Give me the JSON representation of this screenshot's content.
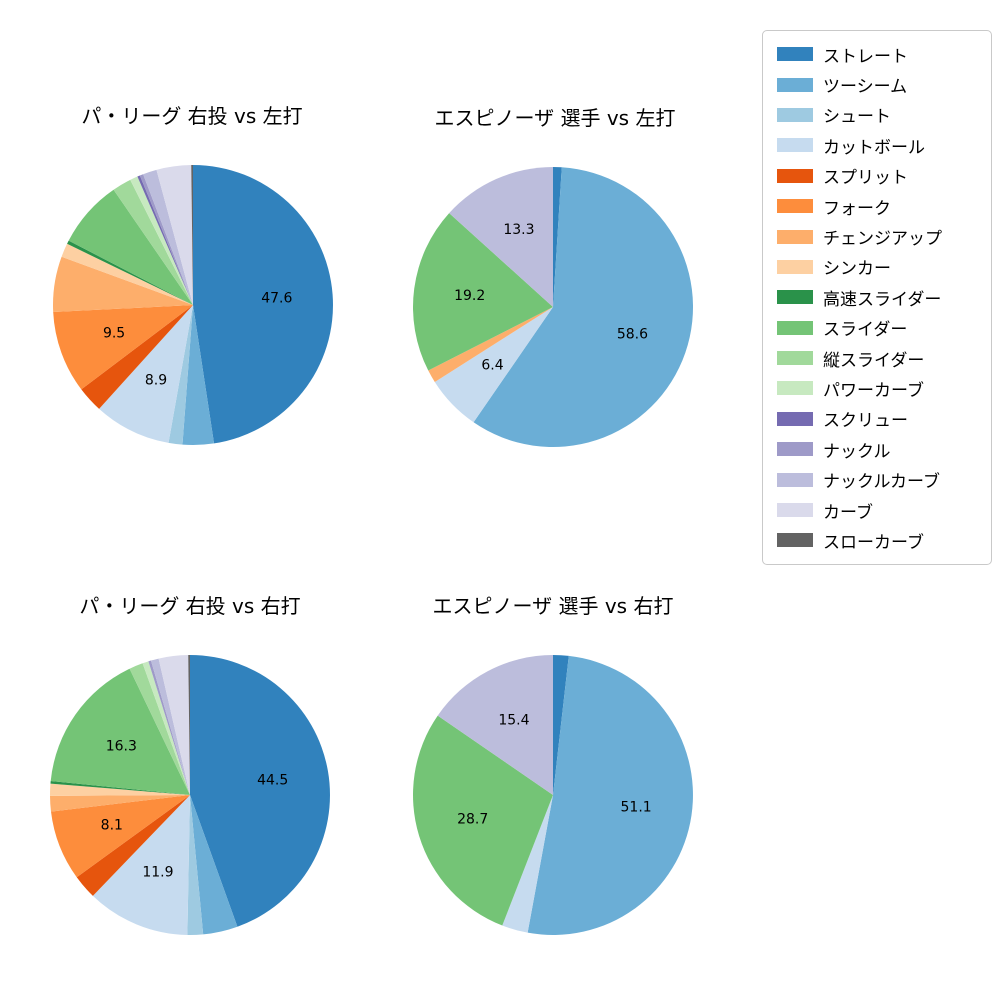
{
  "legend": {
    "items": [
      {
        "label": "ストレート",
        "color": "#3182bd"
      },
      {
        "label": "ツーシーム",
        "color": "#6baed6"
      },
      {
        "label": "シュート",
        "color": "#9ecae1"
      },
      {
        "label": "カットボール",
        "color": "#c6dbef"
      },
      {
        "label": "スプリット",
        "color": "#e6550d"
      },
      {
        "label": "フォーク",
        "color": "#fd8d3c"
      },
      {
        "label": "チェンジアップ",
        "color": "#fdae6b"
      },
      {
        "label": "シンカー",
        "color": "#fdd0a2"
      },
      {
        "label": "高速スライダー",
        "color": "#2a924a"
      },
      {
        "label": "スライダー",
        "color": "#74c476"
      },
      {
        "label": "縦スライダー",
        "color": "#a1d99b"
      },
      {
        "label": "パワーカーブ",
        "color": "#c7e9c0"
      },
      {
        "label": "スクリュー",
        "color": "#756bb1"
      },
      {
        "label": "ナックル",
        "color": "#9e9ac8"
      },
      {
        "label": "ナックルカーブ",
        "color": "#bcbddc"
      },
      {
        "label": "カーブ",
        "color": "#dadaeb"
      },
      {
        "label": "スローカーブ",
        "color": "#636363"
      }
    ]
  },
  "chart_data": [
    {
      "type": "pie",
      "title": "パ・リーグ 右投 vs 左打",
      "start_angle_deg": 90,
      "direction": "clockwise",
      "slices": [
        {
          "name": "ストレート",
          "value": 47.6,
          "pct_label": "47.6"
        },
        {
          "name": "ツーシーム",
          "value": 3.6
        },
        {
          "name": "シュート",
          "value": 1.6
        },
        {
          "name": "カットボール",
          "value": 8.9,
          "pct_label": "8.9"
        },
        {
          "name": "スプリット",
          "value": 3.0
        },
        {
          "name": "フォーク",
          "value": 9.5,
          "pct_label": "9.5"
        },
        {
          "name": "チェンジアップ",
          "value": 6.4
        },
        {
          "name": "シンカー",
          "value": 1.6
        },
        {
          "name": "高速スライダー",
          "value": 0.4
        },
        {
          "name": "スライダー",
          "value": 7.8
        },
        {
          "name": "縦スライダー",
          "value": 2.2
        },
        {
          "name": "パワーカーブ",
          "value": 0.9
        },
        {
          "name": "スクリュー",
          "value": 0.3
        },
        {
          "name": "ナックル",
          "value": 0.4
        },
        {
          "name": "ナックルカーブ",
          "value": 1.6
        },
        {
          "name": "カーブ",
          "value": 4.0
        },
        {
          "name": "スローカーブ",
          "value": 0.2
        }
      ]
    },
    {
      "type": "pie",
      "title": "エスピノーザ 選手 vs 左打",
      "start_angle_deg": 90,
      "direction": "clockwise",
      "slices": [
        {
          "name": "ストレート",
          "value": 1.0
        },
        {
          "name": "ツーシーム",
          "value": 58.6,
          "pct_label": "58.6"
        },
        {
          "name": "カットボール",
          "value": 6.4,
          "pct_label": "6.4"
        },
        {
          "name": "チェンジアップ",
          "value": 1.5
        },
        {
          "name": "スライダー",
          "value": 19.2,
          "pct_label": "19.2"
        },
        {
          "name": "ナックルカーブ",
          "value": 13.3,
          "pct_label": "13.3"
        }
      ]
    },
    {
      "type": "pie",
      "title": "パ・リーグ 右投 vs 右打",
      "start_angle_deg": 90,
      "direction": "clockwise",
      "slices": [
        {
          "name": "ストレート",
          "value": 44.5,
          "pct_label": "44.5"
        },
        {
          "name": "ツーシーム",
          "value": 4.0
        },
        {
          "name": "シュート",
          "value": 1.8
        },
        {
          "name": "カットボール",
          "value": 11.9,
          "pct_label": "11.9"
        },
        {
          "name": "スプリット",
          "value": 2.8
        },
        {
          "name": "フォーク",
          "value": 8.1,
          "pct_label": "8.1"
        },
        {
          "name": "チェンジアップ",
          "value": 1.8
        },
        {
          "name": "シンカー",
          "value": 1.4
        },
        {
          "name": "高速スライダー",
          "value": 0.3
        },
        {
          "name": "スライダー",
          "value": 16.3,
          "pct_label": "16.3"
        },
        {
          "name": "縦スライダー",
          "value": 1.6
        },
        {
          "name": "パワーカーブ",
          "value": 0.7
        },
        {
          "name": "ナックル",
          "value": 0.3
        },
        {
          "name": "ナックルカーブ",
          "value": 0.9
        },
        {
          "name": "カーブ",
          "value": 3.4
        },
        {
          "name": "スローカーブ",
          "value": 0.2
        }
      ]
    },
    {
      "type": "pie",
      "title": "エスピノーザ 選手 vs 右打",
      "start_angle_deg": 90,
      "direction": "clockwise",
      "slices": [
        {
          "name": "ストレート",
          "value": 1.8
        },
        {
          "name": "ツーシーム",
          "value": 51.1,
          "pct_label": "51.1"
        },
        {
          "name": "カットボール",
          "value": 3.0
        },
        {
          "name": "スライダー",
          "value": 28.7,
          "pct_label": "28.7"
        },
        {
          "name": "ナックルカーブ",
          "value": 15.4,
          "pct_label": "15.4"
        }
      ]
    }
  ]
}
